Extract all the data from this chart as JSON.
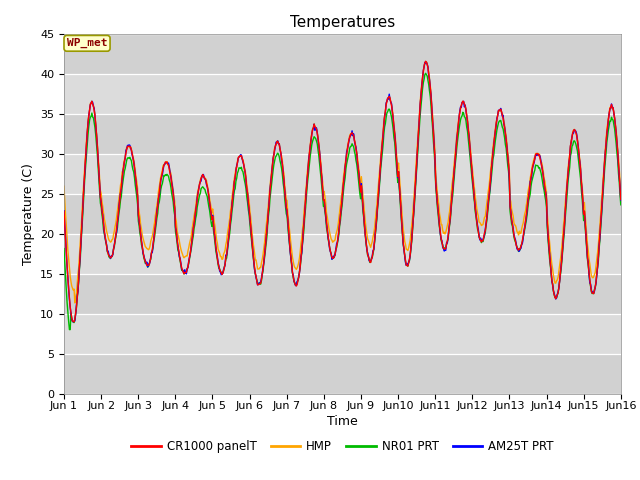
{
  "title": "Temperatures",
  "ylabel": "Temperature (C)",
  "xlabel": "Time",
  "annotation": "WP_met",
  "ylim": [
    0,
    45
  ],
  "yticks": [
    0,
    5,
    10,
    15,
    20,
    25,
    30,
    35,
    40,
    45
  ],
  "legend_labels": [
    "CR1000 panelT",
    "HMP",
    "NR01 PRT",
    "AM25T PRT"
  ],
  "legend_colors": [
    "#ff0000",
    "#ffa500",
    "#00bb00",
    "#0000ff"
  ],
  "bg_color": "#dcdcdc",
  "title_fontsize": 11,
  "axis_fontsize": 9,
  "tick_fontsize": 8,
  "n_days": 15,
  "n_points": 720,
  "daily_peaks": [
    35,
    36.5,
    31,
    29,
    27.2,
    29.8,
    31.5,
    33.5,
    32.5,
    37,
    41.5,
    36.5,
    35.5,
    30,
    33,
    36
  ],
  "daily_lows": [
    9,
    17,
    16,
    15,
    15,
    13.5,
    13.5,
    17,
    16.5,
    16,
    18,
    19,
    18,
    12,
    12.5,
    15
  ]
}
